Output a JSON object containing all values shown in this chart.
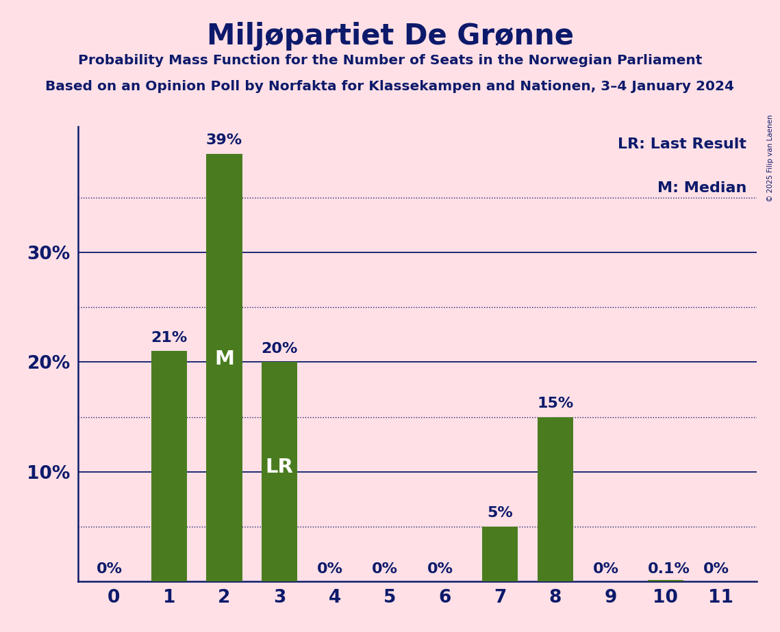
{
  "title": "Miljøpartiet De Grønne",
  "subtitle1": "Probability Mass Function for the Number of Seats in the Norwegian Parliament",
  "subtitle2": "Based on an Opinion Poll by Norfakta for Klassekampen and Nationen, 3–4 January 2024",
  "copyright": "© 2025 Filip van Laenen",
  "seats": [
    0,
    1,
    2,
    3,
    4,
    5,
    6,
    7,
    8,
    9,
    10,
    11
  ],
  "probabilities": [
    0.0,
    0.21,
    0.39,
    0.2,
    0.0,
    0.0,
    0.0,
    0.05,
    0.15,
    0.0,
    0.001,
    0.0
  ],
  "bar_color": "#4a7c1f",
  "background_color": "#FFE0E6",
  "text_color": "#0d1a6b",
  "label_texts": [
    "0%",
    "21%",
    "39%",
    "20%",
    "0%",
    "0%",
    "0%",
    "5%",
    "15%",
    "0%",
    "0.1%",
    "0%"
  ],
  "median_bar": 2,
  "lr_bar": 3,
  "legend_lr": "LR: Last Result",
  "legend_m": "M: Median",
  "yticks": [
    0.0,
    0.1,
    0.2,
    0.3
  ],
  "ylabel_labels": [
    "",
    "10%",
    "20%",
    "30%"
  ],
  "solid_gridlines": [
    0.1,
    0.2,
    0.3
  ],
  "dotted_gridlines": [
    0.05,
    0.15,
    0.25,
    0.35
  ],
  "ylim": [
    0,
    0.415
  ]
}
